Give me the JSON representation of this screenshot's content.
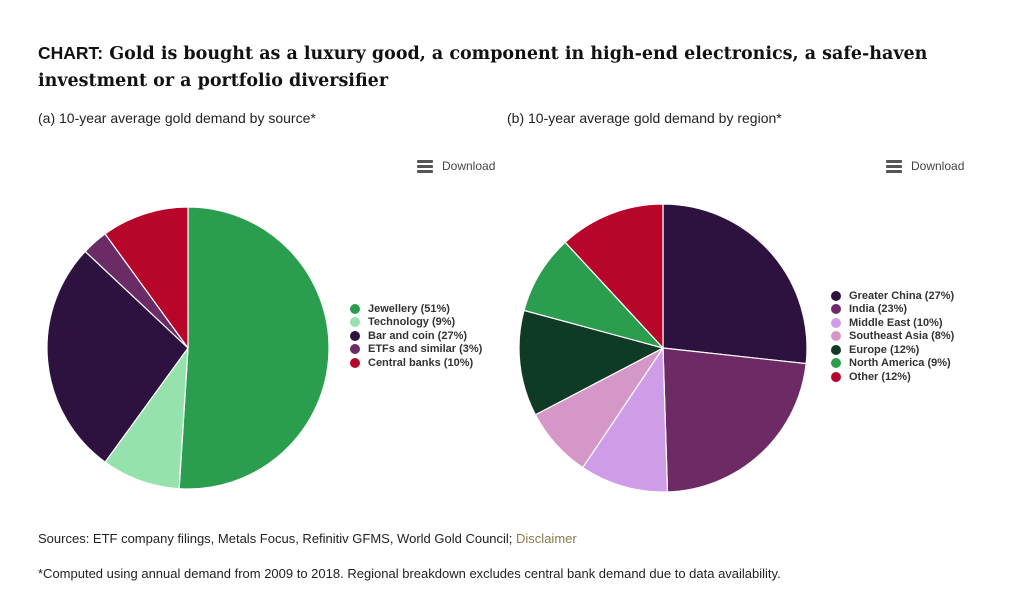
{
  "header": {
    "tag": "CHART:",
    "title": "Gold is bought as a luxury good, a component in high-end electronics, a safe-haven investment or a portfolio diversifier"
  },
  "download_label": "Download",
  "chart_data": [
    {
      "type": "pie",
      "title": "(a) 10-year average gold demand by source*",
      "slices": [
        {
          "label": "Jewellery",
          "value": 51,
          "legend": "Jewellery (51%)",
          "color": "#2a9e4e"
        },
        {
          "label": "Technology",
          "value": 9,
          "legend": "Technology (9%)",
          "color": "#95e2ad"
        },
        {
          "label": "Bar and coin",
          "value": 27,
          "legend": "Bar and coin (27%)",
          "color": "#2d1240"
        },
        {
          "label": "ETFs and similar",
          "value": 3,
          "legend": "ETFs and similar (3%)",
          "color": "#6b2c66"
        },
        {
          "label": "Central banks",
          "value": 10,
          "legend": "Central banks (10%)",
          "color": "#b8062b"
        }
      ]
    },
    {
      "type": "pie",
      "title": "(b) 10-year average gold demand by region*",
      "slices": [
        {
          "label": "Greater China",
          "value": 27,
          "legend": "Greater China (27%)",
          "color": "#2d1240"
        },
        {
          "label": "India",
          "value": 23,
          "legend": "India (23%)",
          "color": "#6e2a64"
        },
        {
          "label": "Middle East",
          "value": 10,
          "legend": "Middle East (10%)",
          "color": "#cf9de8"
        },
        {
          "label": "Southeast Asia",
          "value": 8,
          "legend": "Southeast Asia (8%)",
          "color": "#d597c8"
        },
        {
          "label": "Europe",
          "value": 12,
          "legend": "Europe (12%)",
          "color": "#0f3a26"
        },
        {
          "label": "North America",
          "value": 9,
          "legend": "North America (9%)",
          "color": "#2a9e4e"
        },
        {
          "label": "Other",
          "value": 12,
          "legend": "Other (12%)",
          "color": "#b8062b"
        }
      ]
    }
  ],
  "footer": {
    "sources_prefix": "Sources: ETF company filings, Metals Focus, Refinitiv GFMS, World Gold Council; ",
    "disclaimer_link": "Disclaimer",
    "footnote": "*Computed using annual demand from 2009 to 2018. Regional breakdown excludes central bank demand due to data availability."
  }
}
